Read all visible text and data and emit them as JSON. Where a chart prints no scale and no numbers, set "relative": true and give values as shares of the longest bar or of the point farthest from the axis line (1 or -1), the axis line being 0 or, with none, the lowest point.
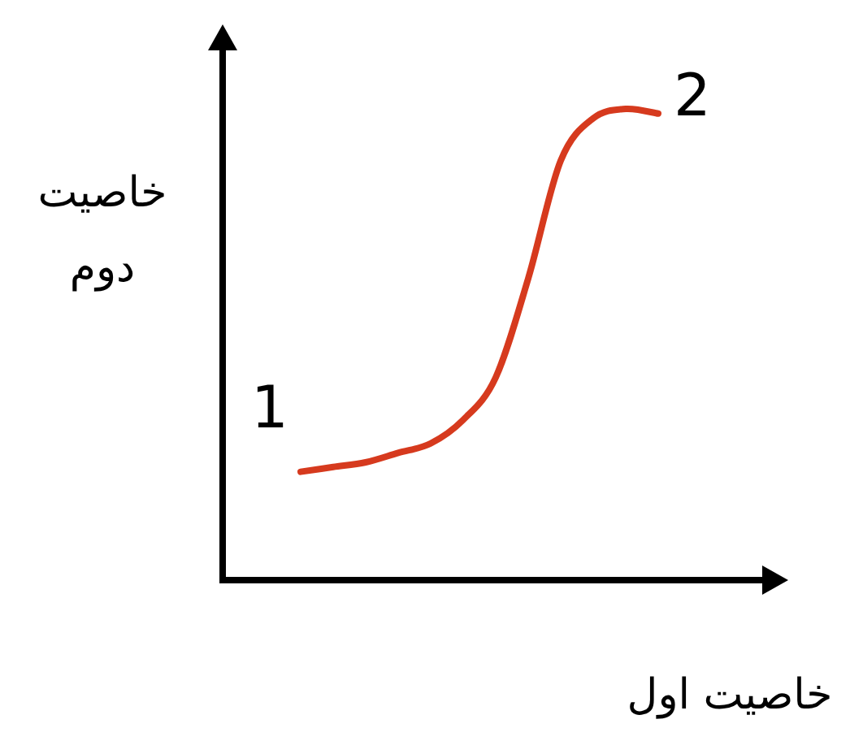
{
  "chart_data": {
    "type": "line",
    "relative": true,
    "xlabel": "خاصیت اول",
    "ylabel": "خاصیت دوم",
    "categories": [
      null,
      null,
      null,
      null,
      null,
      null,
      null,
      null,
      null,
      null,
      null,
      null
    ],
    "series": [
      {
        "color": "#d63a1e",
        "values": [
          0.23,
          0.24,
          0.25,
          0.27,
          0.29,
          0.34,
          0.43,
          0.64,
          0.89,
          0.98,
          1,
          0.99
        ]
      }
    ],
    "annotations": [
      "1",
      "2"
    ],
    "marker": "none",
    "line_style": "solid"
  }
}
